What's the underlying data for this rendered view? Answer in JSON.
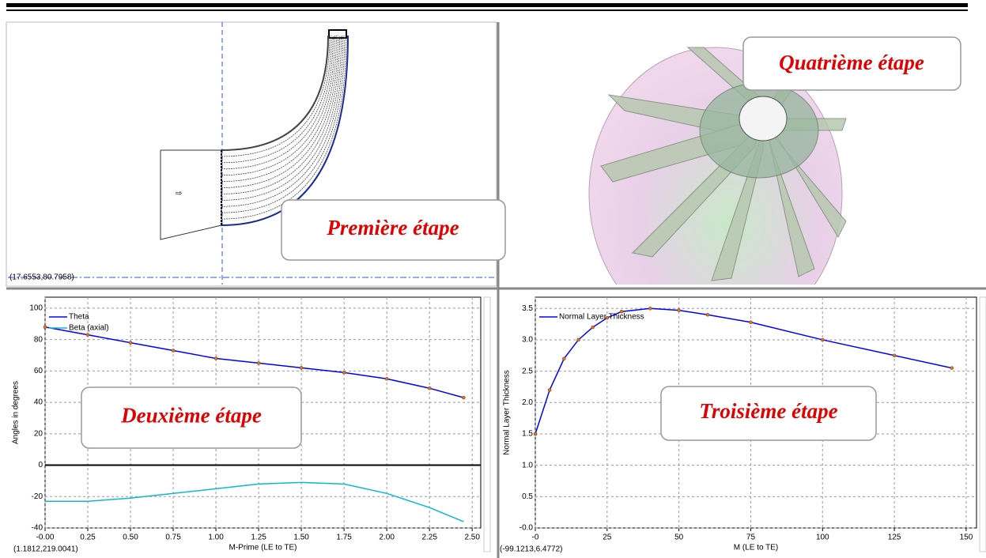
{
  "meridional_view": {
    "coordinates": "(17.6553,80.7958)",
    "caption": "Première étape"
  },
  "impeller_view": {
    "caption": "Quatrième étape"
  },
  "charts": [
    {
      "type": "line",
      "caption": "Deuxième étape",
      "x_label": "M-Prime (LE to TE)",
      "y_label": "Angles in degrees",
      "coordinates": "(1.1812,219.0041)",
      "xlim": [
        0,
        2.55
      ],
      "ylim": [
        -40,
        107
      ],
      "xticks": [
        {
          "value": 0,
          "label": "-0.00"
        },
        0.25,
        {
          "value": 0.5,
          "label": "0.50"
        },
        0.75,
        {
          "value": 1,
          "label": "1.00"
        },
        1.25,
        {
          "value": 1.5,
          "label": "1.50"
        },
        1.75,
        {
          "value": 2,
          "label": "2.00"
        },
        2.25,
        {
          "value": 2.5,
          "label": "2.50"
        }
      ],
      "yticks": [
        -40,
        -20,
        0,
        20,
        40,
        60,
        80,
        100
      ],
      "grid": true,
      "series": [
        {
          "name": "Theta",
          "color": "#0000ff",
          "markers": true,
          "x": [
            0,
            0.25,
            0.5,
            0.75,
            1.0,
            1.25,
            1.5,
            1.75,
            2.0,
            2.25,
            2.45
          ],
          "values": [
            88,
            83,
            78,
            73,
            68,
            65,
            62,
            59,
            55,
            49,
            43
          ]
        },
        {
          "name": "Beta (axial)",
          "color": "#10b8c8",
          "markers": false,
          "x": [
            0,
            0.25,
            0.5,
            0.75,
            1.0,
            1.25,
            1.5,
            1.75,
            2.0,
            2.25,
            2.45
          ],
          "values": [
            -23,
            -23,
            -21,
            -18,
            -15,
            -12,
            -11,
            -12,
            -18,
            -27,
            -36
          ]
        }
      ]
    },
    {
      "type": "line",
      "caption": "Troisième étape",
      "x_label": "M (LE to TE)",
      "y_label": "Normal Layer Thickness",
      "coordinates": "(-99.1213,6.4772)",
      "xlim": [
        0,
        153.6
      ],
      "ylim": [
        0,
        3.68
      ],
      "xticks": [
        {
          "value": 0,
          "label": "-0"
        },
        25,
        50,
        75,
        100,
        125,
        150
      ],
      "yticks": [
        {
          "value": 0,
          "label": "-0.0"
        },
        0.5,
        {
          "value": 1,
          "label": "1.0"
        },
        1.5,
        {
          "value": 2,
          "label": "2.0"
        },
        2.5,
        {
          "value": 3,
          "label": "3.0"
        },
        3.5
      ],
      "grid": true,
      "series": [
        {
          "name": "Normal Layer Thickness",
          "color": "#0000ff",
          "markers": true,
          "x": [
            0,
            5,
            10,
            15,
            20,
            25,
            30,
            40,
            50,
            60,
            75,
            100,
            125,
            145
          ],
          "values": [
            1.5,
            2.2,
            2.7,
            3.0,
            3.2,
            3.35,
            3.45,
            3.5,
            3.47,
            3.4,
            3.28,
            3.0,
            2.75,
            2.55
          ]
        }
      ]
    }
  ]
}
